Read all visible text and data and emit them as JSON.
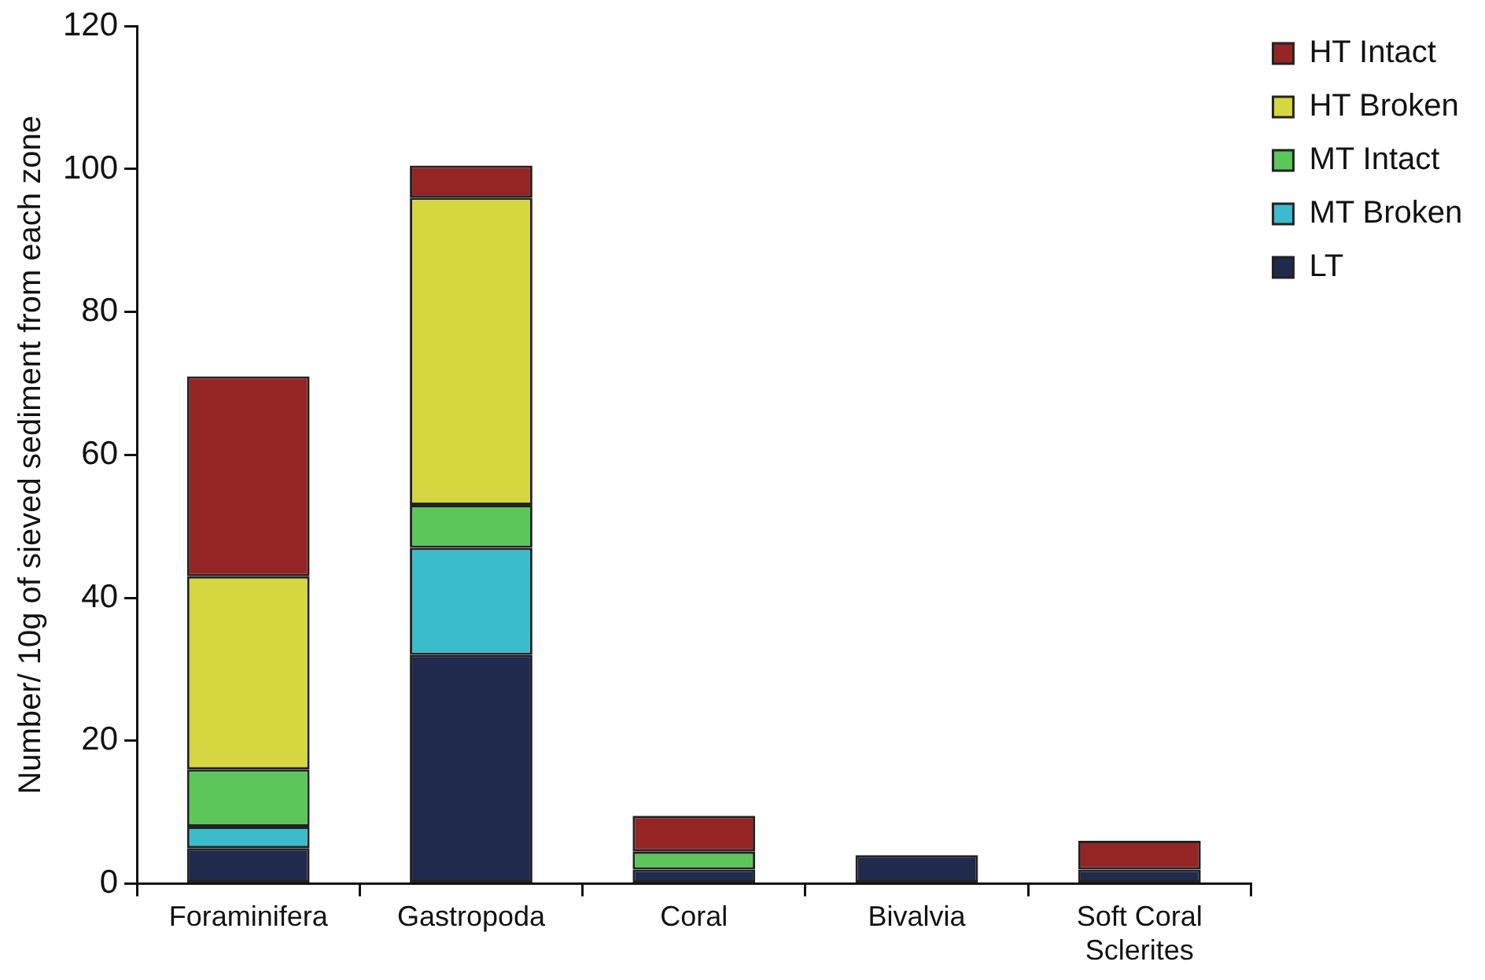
{
  "chart_data": {
    "type": "bar",
    "stacked": true,
    "ylabel": "Number/ 10g of sieved sediment from each zone",
    "categories": [
      "Foraminifera",
      "Gastropoda",
      "Coral",
      "Bivalvia",
      "Soft Coral Sclerites"
    ],
    "series": [
      {
        "name": "LT",
        "color": "#1f2a4d",
        "values": [
          5,
          32,
          2,
          4,
          2
        ]
      },
      {
        "name": "MT Broken",
        "color": "#3bbccc",
        "values": [
          3,
          15,
          0,
          0,
          0
        ]
      },
      {
        "name": "MT Intact",
        "color": "#5cc65a",
        "values": [
          8,
          6,
          2.5,
          0,
          0
        ]
      },
      {
        "name": "HT Broken",
        "color": "#d6d641",
        "values": [
          27,
          43,
          0,
          0,
          0
        ]
      },
      {
        "name": "HT Intact",
        "color": "#952525",
        "values": [
          28,
          4.5,
          5,
          0,
          4
        ]
      }
    ],
    "ylim": [
      0,
      120
    ],
    "yticks": [
      0,
      20,
      40,
      60,
      80,
      100,
      120
    ],
    "grid": false,
    "legend": "top right"
  }
}
